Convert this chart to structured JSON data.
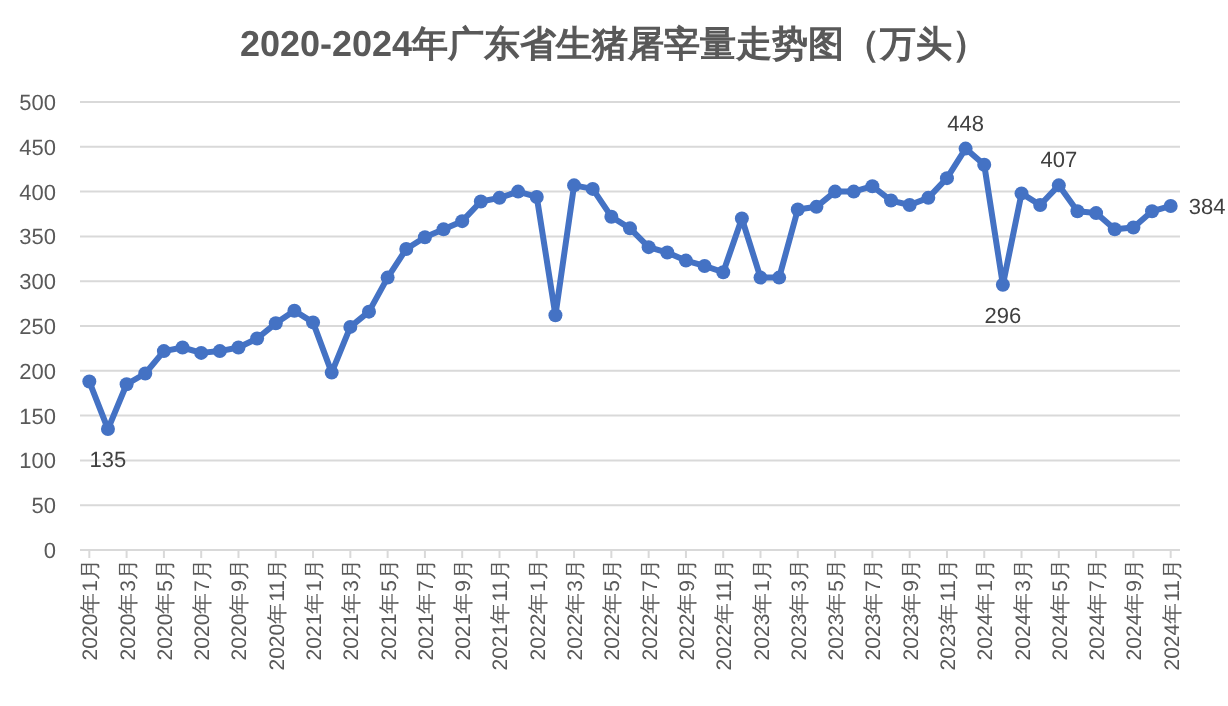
{
  "chart_data": {
    "type": "line",
    "title": "2020-2024年广东省生猪屠宰量走势图（万头）",
    "categories": [
      "2020年1月",
      null,
      "2020年3月",
      null,
      "2020年5月",
      null,
      "2020年7月",
      null,
      "2020年9月",
      null,
      "2020年11月",
      null,
      "2021年1月",
      null,
      "2021年3月",
      null,
      "2021年5月",
      null,
      "2021年7月",
      null,
      "2021年9月",
      null,
      "2021年11月",
      null,
      "2022年1月",
      null,
      "2022年3月",
      null,
      "2022年5月",
      null,
      "2022年7月",
      null,
      "2022年9月",
      null,
      "2022年11月",
      null,
      "2023年1月",
      null,
      "2023年3月",
      null,
      "2023年5月",
      null,
      "2023年7月",
      null,
      "2023年9月",
      null,
      "2023年11月",
      null,
      "2024年1月",
      null,
      "2024年3月",
      null,
      "2024年5月",
      null,
      "2024年7月",
      null,
      "2024年9月",
      null,
      "2024年11月"
    ],
    "series": [
      {
        "color": "#4472c4",
        "values": [
          188,
          135,
          185,
          197,
          222,
          226,
          220,
          222,
          226,
          236,
          253,
          267,
          254,
          198,
          249,
          266,
          304,
          336,
          349,
          358,
          367,
          389,
          393,
          400,
          394,
          262,
          407,
          403,
          372,
          359,
          338,
          332,
          323,
          317,
          310,
          370,
          304,
          304,
          380,
          383,
          400,
          400,
          406,
          390,
          385,
          393,
          415,
          448,
          430,
          296,
          398,
          385,
          407,
          378,
          376,
          358,
          360,
          378,
          384
        ],
        "value_labels": [
          null,
          "135",
          null,
          null,
          null,
          null,
          null,
          null,
          null,
          null,
          null,
          null,
          null,
          null,
          null,
          null,
          null,
          null,
          null,
          null,
          null,
          null,
          null,
          null,
          null,
          null,
          null,
          null,
          null,
          null,
          null,
          null,
          null,
          null,
          null,
          null,
          null,
          null,
          null,
          null,
          null,
          null,
          null,
          null,
          null,
          null,
          null,
          "448",
          null,
          "296",
          null,
          null,
          "407",
          null,
          null,
          null,
          null,
          null,
          "384"
        ]
      }
    ],
    "ylim": [
      0,
      500
    ],
    "yticks": [
      0,
      50,
      100,
      150,
      200,
      250,
      300,
      350,
      400,
      450,
      500
    ],
    "grid": "y",
    "marker": "circle",
    "line_style": "solid"
  }
}
